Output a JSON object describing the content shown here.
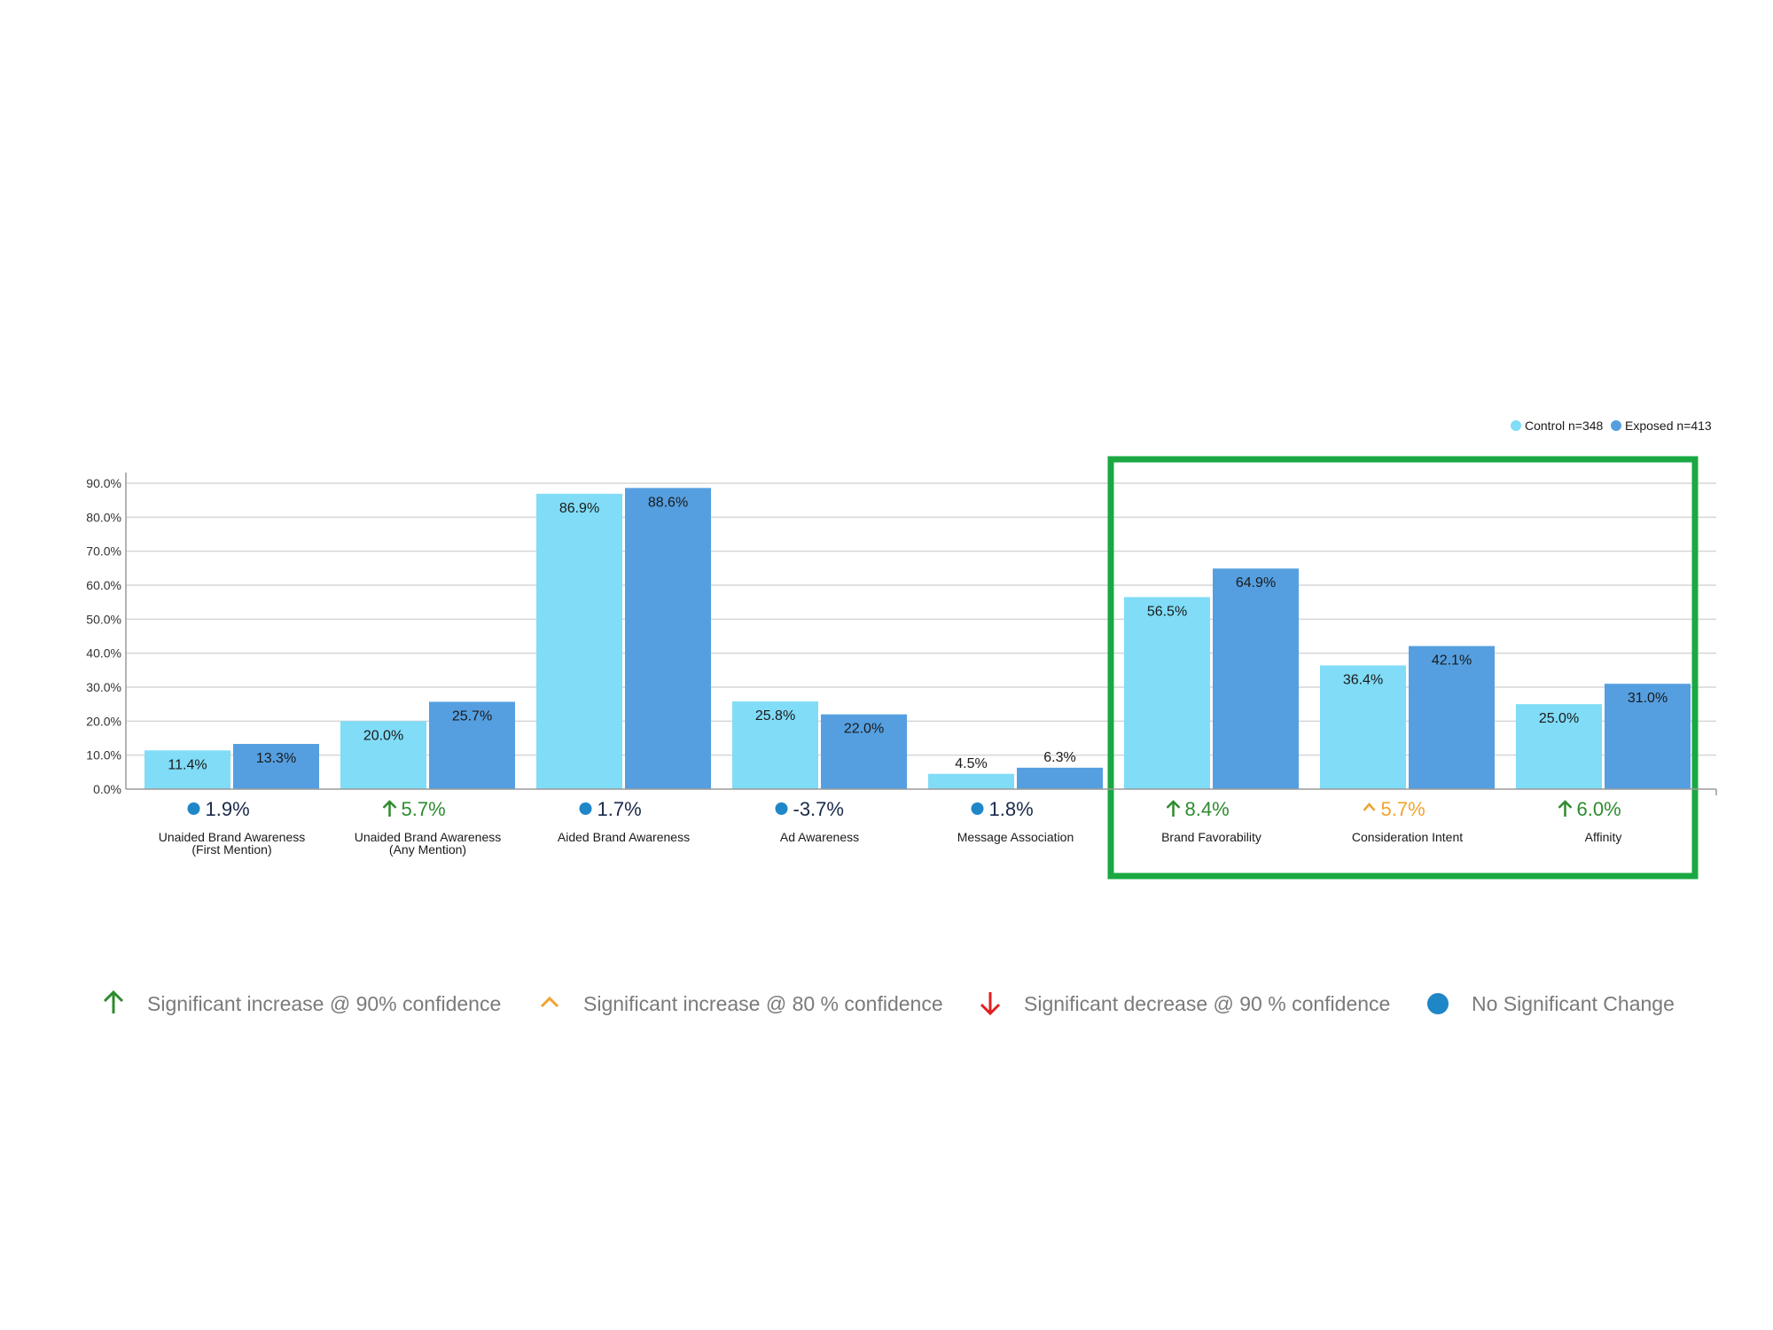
{
  "chart_data": {
    "type": "bar",
    "ylim": [
      0,
      90
    ],
    "yticks": [
      "0.0%",
      "10.0%",
      "20.0%",
      "30.0%",
      "40.0%",
      "50.0%",
      "60.0%",
      "70.0%",
      "80.0%",
      "90.0%"
    ],
    "grid": true,
    "legend_placement": "top-right",
    "categories": [
      [
        "Unaided Brand Awareness",
        "(First Mention)"
      ],
      [
        "Unaided Brand Awareness",
        "(Any Mention)"
      ],
      [
        "Aided Brand Awareness"
      ],
      [
        "Ad Awareness"
      ],
      [
        "Message Association"
      ],
      [
        "Brand Favorability"
      ],
      [
        "Consideration Intent"
      ],
      [
        "Affinity"
      ]
    ],
    "series": [
      {
        "name": "Control n=348",
        "color": "#80dcf7",
        "values": [
          11.4,
          20.0,
          86.9,
          25.8,
          4.5,
          56.5,
          36.4,
          25.0
        ],
        "labels": [
          "11.4%",
          "20.0%",
          "86.9%",
          "25.8%",
          "4.5%",
          "56.5%",
          "36.4%",
          "25.0%"
        ]
      },
      {
        "name": "Exposed n=413",
        "color": "#559fe0",
        "values": [
          13.3,
          25.7,
          88.6,
          22.0,
          6.3,
          64.9,
          42.1,
          31.0
        ],
        "labels": [
          "13.3%",
          "25.7%",
          "88.6%",
          "22.0%",
          "6.3%",
          "64.9%",
          "42.1%",
          "31.0%"
        ]
      }
    ],
    "lifts": [
      {
        "value": 1.9,
        "text": "1.9%",
        "status": "none"
      },
      {
        "value": 5.7,
        "text": "5.7%",
        "status": "up90"
      },
      {
        "value": 1.7,
        "text": "1.7%",
        "status": "none"
      },
      {
        "value": -3.7,
        "text": "-3.7%",
        "status": "none"
      },
      {
        "value": 1.8,
        "text": "1.8%",
        "status": "none"
      },
      {
        "value": 8.4,
        "text": "8.4%",
        "status": "up90"
      },
      {
        "value": 5.7,
        "text": "5.7%",
        "status": "up80"
      },
      {
        "value": 6.0,
        "text": "6.0%",
        "status": "up90"
      }
    ],
    "highlight": {
      "from_category": 5,
      "to_category": 7,
      "color": "#1aa843"
    }
  },
  "significance_key": [
    {
      "status": "up90",
      "text": "Significant increase @ 90% confidence"
    },
    {
      "status": "up80",
      "text": "Significant increase @ 80 % confidence"
    },
    {
      "status": "down90",
      "text": "Significant decrease @ 90 % confidence"
    },
    {
      "status": "none",
      "text": "No Significant Change"
    }
  ],
  "status_colors": {
    "up90": "#2e8b2e",
    "up80": "#f0a330",
    "down90": "#e02020",
    "none": "#1f86c8",
    "none_text": "#1a2a4a"
  },
  "status_icons": {
    "up90": "arrow-up-icon",
    "up80": "chevron-up-icon",
    "down90": "arrow-down-icon",
    "none": "dot-icon"
  }
}
